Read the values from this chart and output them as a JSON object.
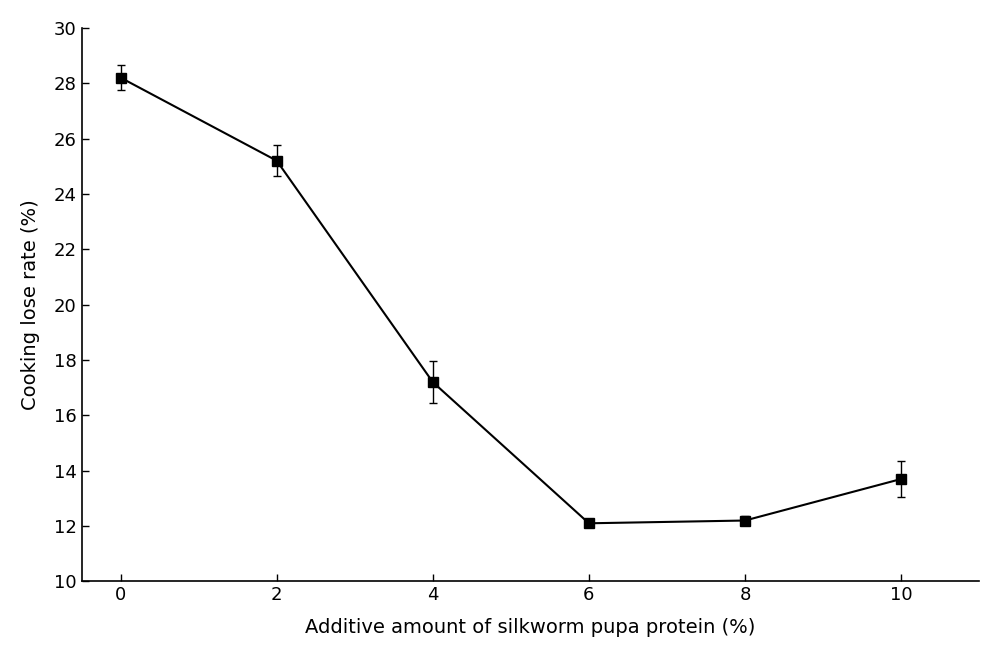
{
  "x": [
    0,
    2,
    4,
    6,
    8,
    10
  ],
  "y": [
    28.2,
    25.2,
    17.2,
    12.1,
    12.2,
    13.7
  ],
  "yerr": [
    0.45,
    0.55,
    0.75,
    0.15,
    0.15,
    0.65
  ],
  "xlabel": "Additive amount of silkworm pupa protein (%)",
  "ylabel": "Cooking lose rate (%)",
  "xlim": [
    -0.5,
    11
  ],
  "ylim": [
    10,
    30
  ],
  "yticks": [
    10,
    12,
    14,
    16,
    18,
    20,
    22,
    24,
    26,
    28,
    30
  ],
  "xticks": [
    0,
    2,
    4,
    6,
    8,
    10
  ],
  "line_color": "#000000",
  "marker": "-s",
  "marker_color": "#000000",
  "marker_size": 7,
  "line_width": 1.5,
  "capsize": 3,
  "background_color": "#ffffff",
  "xlabel_fontsize": 14,
  "ylabel_fontsize": 14,
  "tick_fontsize": 13
}
